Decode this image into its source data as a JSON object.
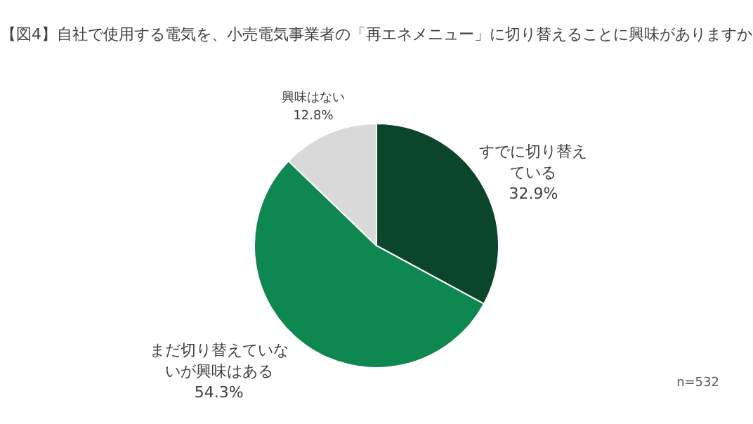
{
  "chart_data": {
    "type": "pie",
    "title": "【図4】自社で使用する電気を、小売電気事業者の「再エネメニュー」に切り替えることに興味がありますか",
    "categories": [
      "すでに切り替えている",
      "まだ切り替えていないが興味はある",
      "興味はない"
    ],
    "values": [
      32.9,
      54.3,
      12.8
    ],
    "value_labels": [
      "32.9%",
      "54.3%",
      "12.8%"
    ],
    "colors": [
      "#0b462c",
      "#0e8751",
      "#d9d9d9"
    ],
    "annotations": [
      "n=532"
    ],
    "legend": false
  }
}
